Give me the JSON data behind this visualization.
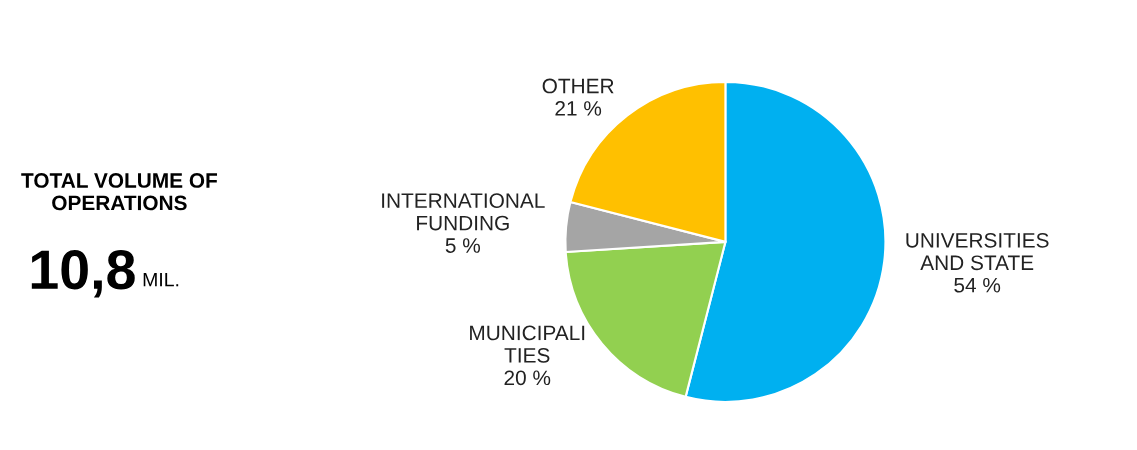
{
  "chart_data": {
    "type": "pie",
    "categories": [
      "UNIVERSITIES\nAND STATE",
      "MUNICIPALI\nTIES",
      "INTERNATIONAL\nFUNDING",
      "OTHER"
    ],
    "values": [
      54,
      20,
      5,
      21
    ],
    "value_labels": [
      "54 %",
      "20 %",
      "5 %",
      "21 %"
    ],
    "colors": [
      "#00b0f0",
      "#92d050",
      "#a5a5a5",
      "#ffc000"
    ],
    "annotations": [
      "TOTAL VOLUME OF\nOPERATIONS",
      "10,8",
      "MIL."
    ],
    "legend": false
  }
}
